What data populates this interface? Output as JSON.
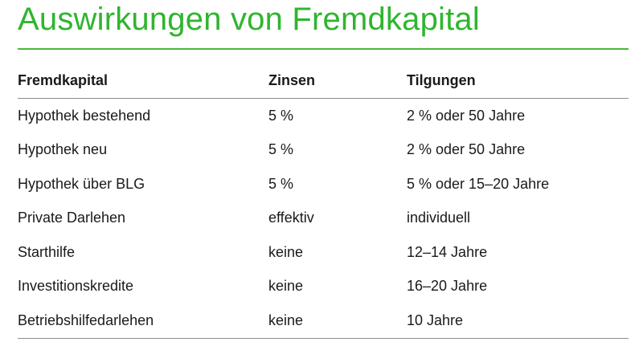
{
  "title": "Auswirkungen von Fremdkapital",
  "colors": {
    "title": "#2fb52f",
    "rule": "#49b83a"
  },
  "table": {
    "headers": [
      "Fremdkapital",
      "Zinsen",
      "Tilgungen"
    ],
    "rows": [
      [
        "Hypothek bestehend",
        "5 %",
        "2 % oder 50 Jahre"
      ],
      [
        "Hypothek neu",
        "5 %",
        "2 % oder 50 Jahre"
      ],
      [
        "Hypothek über BLG",
        "5 %",
        "5 % oder 15–20 Jahre"
      ],
      [
        "Private Darlehen",
        "effektiv",
        "individuell"
      ],
      [
        "Starthilfe",
        "keine",
        "12–14 Jahre"
      ],
      [
        "Investitionskredite",
        "keine",
        "16–20 Jahre"
      ],
      [
        "Betriebshilfedarlehen",
        "keine",
        "10 Jahre"
      ]
    ]
  }
}
